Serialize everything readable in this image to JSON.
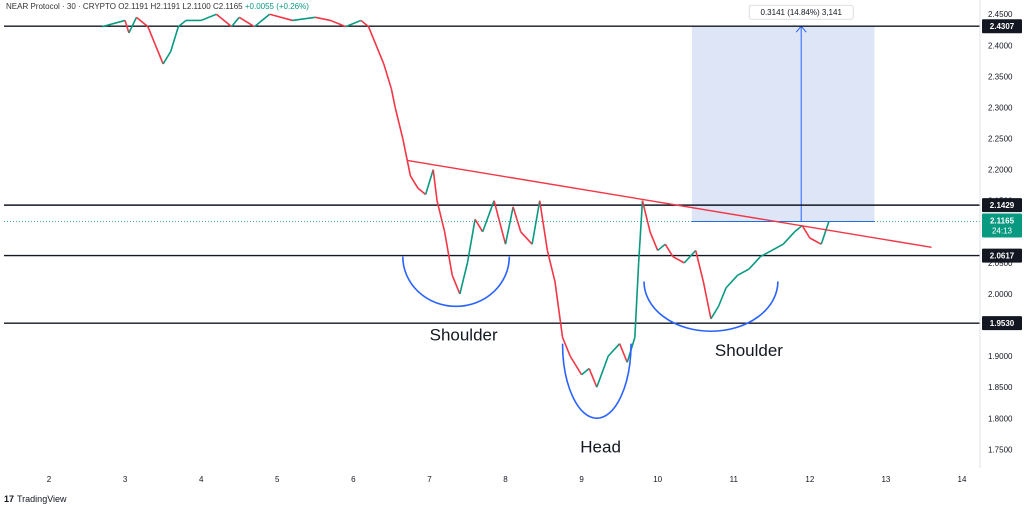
{
  "header": {
    "symbol": "NEAR Protocol · 30 · CRYPTO",
    "ohlc": "O2.1191  H2.1191  L2.1100  C2.1165",
    "change": "+0.0055 (+0.26%)"
  },
  "footer": {
    "brand": "TradingView"
  },
  "chart_data": {
    "type": "candlestick",
    "x_ticks": [
      "2",
      "3",
      "4",
      "5",
      "6",
      "7",
      "8",
      "9",
      "10",
      "11",
      "12",
      "13",
      "14"
    ],
    "y_ticks": [
      "1.7500",
      "1.8000",
      "1.8500",
      "1.9000",
      "1.9500",
      "2.0000",
      "2.0500",
      "2.1000",
      "2.1500",
      "2.2000",
      "2.2500",
      "2.3000",
      "2.3500",
      "2.4000",
      "2.4500"
    ],
    "ylim": [
      1.72,
      2.46
    ],
    "levels": [
      {
        "price": 2.4307,
        "label": "2.4307"
      },
      {
        "price": 2.1429,
        "label": "2.1429"
      },
      {
        "price": 2.0617,
        "label": "2.0617"
      },
      {
        "price": 1.953,
        "label": "1.9530"
      }
    ],
    "last_price": {
      "price": 2.1165,
      "label": "2.1165",
      "countdown": "24:13",
      "color": "#089981"
    },
    "neckline": {
      "from": [
        6.7,
        2.215
      ],
      "to": [
        13.6,
        2.075
      ],
      "color": "#f23645"
    },
    "measure_box": {
      "x0": 10.45,
      "x1": 12.85,
      "y0": 2.1165,
      "y1": 2.4307,
      "label": "0.3141 (14.84%) 3,141"
    },
    "annotations": [
      {
        "text": "Shoulder",
        "x": 7.45,
        "y": 1.925
      },
      {
        "text": "Head",
        "x": 9.25,
        "y": 1.745
      },
      {
        "text": "Shoulder",
        "x": 11.2,
        "y": 1.9
      }
    ],
    "arcs": [
      {
        "cx": 7.35,
        "cy": 2.06,
        "rx": 0.7,
        "ry": 0.08
      },
      {
        "cx": 9.2,
        "cy": 1.92,
        "rx": 0.45,
        "ry": 0.12
      },
      {
        "cx": 10.7,
        "cy": 2.02,
        "rx": 0.88,
        "ry": 0.08
      }
    ],
    "price_path": [
      [
        2.7,
        2.43
      ],
      [
        3.0,
        2.44
      ],
      [
        3.05,
        2.42
      ],
      [
        3.15,
        2.445
      ],
      [
        3.3,
        2.43
      ],
      [
        3.4,
        2.4
      ],
      [
        3.5,
        2.37
      ],
      [
        3.6,
        2.39
      ],
      [
        3.7,
        2.43
      ],
      [
        3.8,
        2.44
      ],
      [
        4.0,
        2.44
      ],
      [
        4.2,
        2.45
      ],
      [
        4.4,
        2.43
      ],
      [
        4.5,
        2.445
      ],
      [
        4.7,
        2.43
      ],
      [
        4.9,
        2.45
      ],
      [
        5.2,
        2.44
      ],
      [
        5.5,
        2.445
      ],
      [
        5.7,
        2.44
      ],
      [
        5.9,
        2.43
      ],
      [
        6.1,
        2.44
      ],
      [
        6.2,
        2.43
      ],
      [
        6.3,
        2.4
      ],
      [
        6.4,
        2.37
      ],
      [
        6.5,
        2.33
      ],
      [
        6.55,
        2.3
      ],
      [
        6.65,
        2.25
      ],
      [
        6.75,
        2.19
      ],
      [
        6.85,
        2.17
      ],
      [
        6.95,
        2.16
      ],
      [
        7.05,
        2.2
      ],
      [
        7.1,
        2.15
      ],
      [
        7.2,
        2.1
      ],
      [
        7.3,
        2.03
      ],
      [
        7.4,
        2.0
      ],
      [
        7.5,
        2.05
      ],
      [
        7.6,
        2.12
      ],
      [
        7.7,
        2.1
      ],
      [
        7.85,
        2.15
      ],
      [
        8.0,
        2.08
      ],
      [
        8.1,
        2.14
      ],
      [
        8.2,
        2.1
      ],
      [
        8.35,
        2.08
      ],
      [
        8.45,
        2.15
      ],
      [
        8.55,
        2.07
      ],
      [
        8.65,
        2.02
      ],
      [
        8.75,
        1.93
      ],
      [
        8.85,
        1.9
      ],
      [
        9.0,
        1.87
      ],
      [
        9.1,
        1.88
      ],
      [
        9.2,
        1.85
      ],
      [
        9.35,
        1.9
      ],
      [
        9.5,
        1.92
      ],
      [
        9.6,
        1.89
      ],
      [
        9.7,
        1.93
      ],
      [
        9.75,
        2.05
      ],
      [
        9.8,
        2.15
      ],
      [
        9.9,
        2.1
      ],
      [
        10.0,
        2.07
      ],
      [
        10.1,
        2.08
      ],
      [
        10.2,
        2.06
      ],
      [
        10.35,
        2.05
      ],
      [
        10.5,
        2.07
      ],
      [
        10.6,
        2.02
      ],
      [
        10.7,
        1.96
      ],
      [
        10.8,
        1.98
      ],
      [
        10.9,
        2.01
      ],
      [
        11.05,
        2.03
      ],
      [
        11.2,
        2.04
      ],
      [
        11.35,
        2.06
      ],
      [
        11.5,
        2.07
      ],
      [
        11.65,
        2.08
      ],
      [
        11.8,
        2.1
      ],
      [
        11.9,
        2.11
      ],
      [
        12.0,
        2.09
      ],
      [
        12.15,
        2.08
      ],
      [
        12.25,
        2.1165
      ]
    ]
  }
}
